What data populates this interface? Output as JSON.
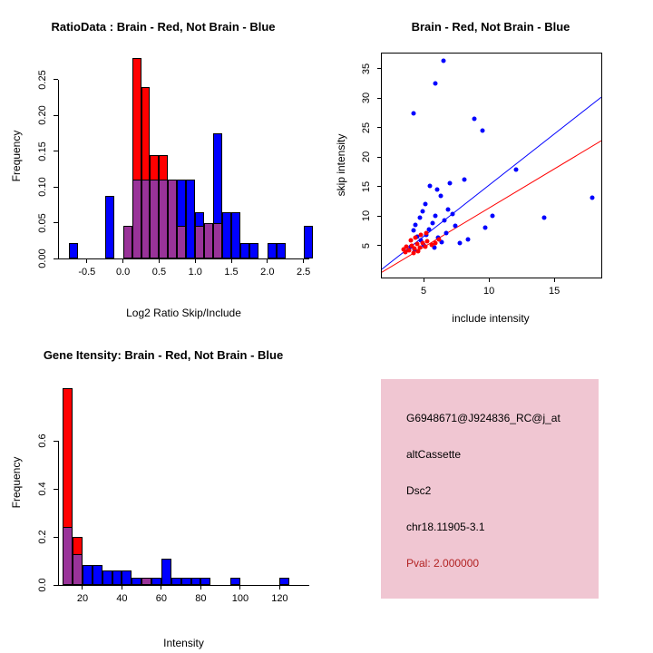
{
  "colors": {
    "red": "#ff0000",
    "blue": "#0000ff",
    "overlap": "#993399",
    "axis": "#000000",
    "background": "#ffffff"
  },
  "chart_data": [
    {
      "type": "bar",
      "subtype": "overlaid-histogram",
      "title": "RatioData : Brain - Red, Not Brain - Blue",
      "xlabel": "Log2 Ratio Skip/Include",
      "ylabel": "Frequency",
      "xlim": [
        -0.9,
        2.58
      ],
      "ylim": [
        0,
        0.285
      ],
      "xticks": [
        -0.5,
        0,
        0.5,
        1,
        1.5,
        2,
        2.5
      ],
      "xtick_labels": [
        "-0.5",
        "0.0",
        "0.5",
        "1.0",
        "1.5",
        "2.0",
        "2.5"
      ],
      "yticks": [
        0,
        0.05,
        0.1,
        0.15,
        0.2,
        0.25
      ],
      "ytick_labels": [
        "0.00",
        "0.05",
        "0.10",
        "0.15",
        "0.20",
        "0.25"
      ],
      "bin_start": -0.75,
      "bin_width": 0.125,
      "overlap_color": "#993399",
      "series": [
        {
          "name": "Brain (red)",
          "color": "#ff0000",
          "values": [
            0,
            0,
            0,
            0,
            0,
            0,
            0.045,
            0.28,
            0.24,
            0.145,
            0.145,
            0.11,
            0.045,
            0,
            0.045,
            0.05,
            0.05,
            0,
            0,
            0,
            0,
            0,
            0,
            0,
            0,
            0,
            0
          ]
        },
        {
          "name": "Not Brain (blue)",
          "color": "#0000ff",
          "values": [
            0.022,
            0,
            0,
            0,
            0.088,
            0,
            0.045,
            0.11,
            0.11,
            0.11,
            0.11,
            0.11,
            0.11,
            0.11,
            0.065,
            0.05,
            0.175,
            0.065,
            0.065,
            0.022,
            0.022,
            0,
            0.022,
            0.022,
            0,
            0,
            0.045
          ]
        }
      ]
    },
    {
      "type": "scatter",
      "title": "Brain - Red, Not Brain - Blue",
      "xlabel": "include intensity",
      "ylabel": "skip intensity",
      "xlim": [
        1.8,
        18.6
      ],
      "ylim": [
        -0.4,
        37.6
      ],
      "xticks": [
        5,
        10,
        15
      ],
      "xtick_labels": [
        "5",
        "10",
        "15"
      ],
      "yticks": [
        5,
        10,
        15,
        20,
        25,
        30,
        35
      ],
      "ytick_labels": [
        "5",
        "10",
        "15",
        "20",
        "25",
        "30",
        "35"
      ],
      "series": [
        {
          "name": "Not Brain (blue)",
          "color": "#0000ff",
          "points": [
            [
              6.5,
              36.3
            ],
            [
              5.9,
              32.6
            ],
            [
              4.2,
              27.4
            ],
            [
              8.9,
              26.5
            ],
            [
              9.5,
              24.6
            ],
            [
              12.1,
              17.9
            ],
            [
              17.9,
              13.1
            ],
            [
              14.2,
              9.8
            ],
            [
              10.3,
              10.1
            ],
            [
              9.7,
              8.0
            ],
            [
              8.4,
              6.1
            ],
            [
              7.8,
              5.4
            ],
            [
              7.0,
              15.6
            ],
            [
              8.1,
              16.2
            ],
            [
              6.9,
              11.1
            ],
            [
              7.2,
              10.4
            ],
            [
              6.6,
              9.3
            ],
            [
              6.3,
              13.4
            ],
            [
              6.0,
              14.6
            ],
            [
              5.5,
              15.2
            ],
            [
              5.1,
              12.1
            ],
            [
              4.9,
              10.9
            ],
            [
              4.7,
              9.7
            ],
            [
              4.4,
              8.6
            ],
            [
              4.2,
              7.6
            ],
            [
              4.5,
              6.6
            ],
            [
              4.8,
              5.9
            ],
            [
              5.0,
              5.1
            ],
            [
              5.2,
              6.9
            ],
            [
              5.4,
              7.8
            ],
            [
              5.7,
              8.8
            ],
            [
              5.9,
              10.0
            ],
            [
              6.1,
              6.4
            ],
            [
              6.4,
              5.6
            ],
            [
              6.7,
              7.2
            ],
            [
              7.4,
              8.3
            ],
            [
              4.0,
              4.9
            ],
            [
              4.3,
              4.4
            ],
            [
              5.8,
              4.7
            ]
          ]
        },
        {
          "name": "Brain (red)",
          "color": "#ff0000",
          "points": [
            [
              3.5,
              4.3
            ],
            [
              3.7,
              4.9
            ],
            [
              3.9,
              4.2
            ],
            [
              4.1,
              5.0
            ],
            [
              4.3,
              4.5
            ],
            [
              4.5,
              5.3
            ],
            [
              4.7,
              4.7
            ],
            [
              4.9,
              5.5
            ],
            [
              5.1,
              4.9
            ],
            [
              5.3,
              5.8
            ],
            [
              5.6,
              5.1
            ],
            [
              4.0,
              5.9
            ],
            [
              4.4,
              6.4
            ],
            [
              4.8,
              6.9
            ],
            [
              5.2,
              7.2
            ],
            [
              3.6,
              3.9
            ],
            [
              4.2,
              3.8
            ],
            [
              4.6,
              4.1
            ],
            [
              5.9,
              5.4
            ],
            [
              6.2,
              6.0
            ]
          ]
        }
      ],
      "lines": [
        {
          "name": "not-brain-fit",
          "color": "#0000ff",
          "x1": 1.8,
          "y1": 1.0,
          "x2": 18.6,
          "y2": 30.2
        },
        {
          "name": "brain-fit",
          "color": "#ff0000",
          "x1": 1.8,
          "y1": 0.5,
          "x2": 18.6,
          "y2": 22.8
        }
      ]
    },
    {
      "type": "bar",
      "subtype": "overlaid-histogram",
      "title": "Gene Itensity: Brain - Red, Not Brain - Blue",
      "xlabel": "Intensity",
      "ylabel": "Frequency",
      "xlim": [
        7.6,
        135
      ],
      "ylim": [
        0,
        0.85
      ],
      "xticks": [
        20,
        40,
        60,
        80,
        100,
        120
      ],
      "xtick_labels": [
        "20",
        "40",
        "60",
        "80",
        "100",
        "120"
      ],
      "yticks": [
        0,
        0.2,
        0.4,
        0.6
      ],
      "ytick_labels": [
        "0.0",
        "0.2",
        "0.4",
        "0.6"
      ],
      "bin_start": 10,
      "bin_width": 5,
      "overlap_color": "#993399",
      "series": [
        {
          "name": "Brain (red)",
          "color": "#ff0000",
          "values": [
            0.82,
            0.2,
            0,
            0,
            0,
            0,
            0,
            0,
            0.03,
            0,
            0,
            0,
            0,
            0,
            0,
            0,
            0,
            0,
            0,
            0,
            0,
            0,
            0
          ]
        },
        {
          "name": "Not Brain (blue)",
          "color": "#0000ff",
          "values": [
            0.24,
            0.13,
            0.085,
            0.085,
            0.06,
            0.06,
            0.06,
            0.03,
            0.03,
            0.03,
            0.11,
            0.03,
            0.03,
            0.03,
            0.03,
            0,
            0,
            0.03,
            0,
            0,
            0,
            0,
            0.03
          ]
        }
      ]
    }
  ],
  "info_box": {
    "bg": "#f0c6d2",
    "probe_id": "G6948671@J924836_RC@j_at",
    "event_type": "altCassette",
    "gene": "Dsc2",
    "location": "chr18.11905-3.1",
    "pval": "Pval: 2.000000",
    "pval_color": "#b22222"
  }
}
